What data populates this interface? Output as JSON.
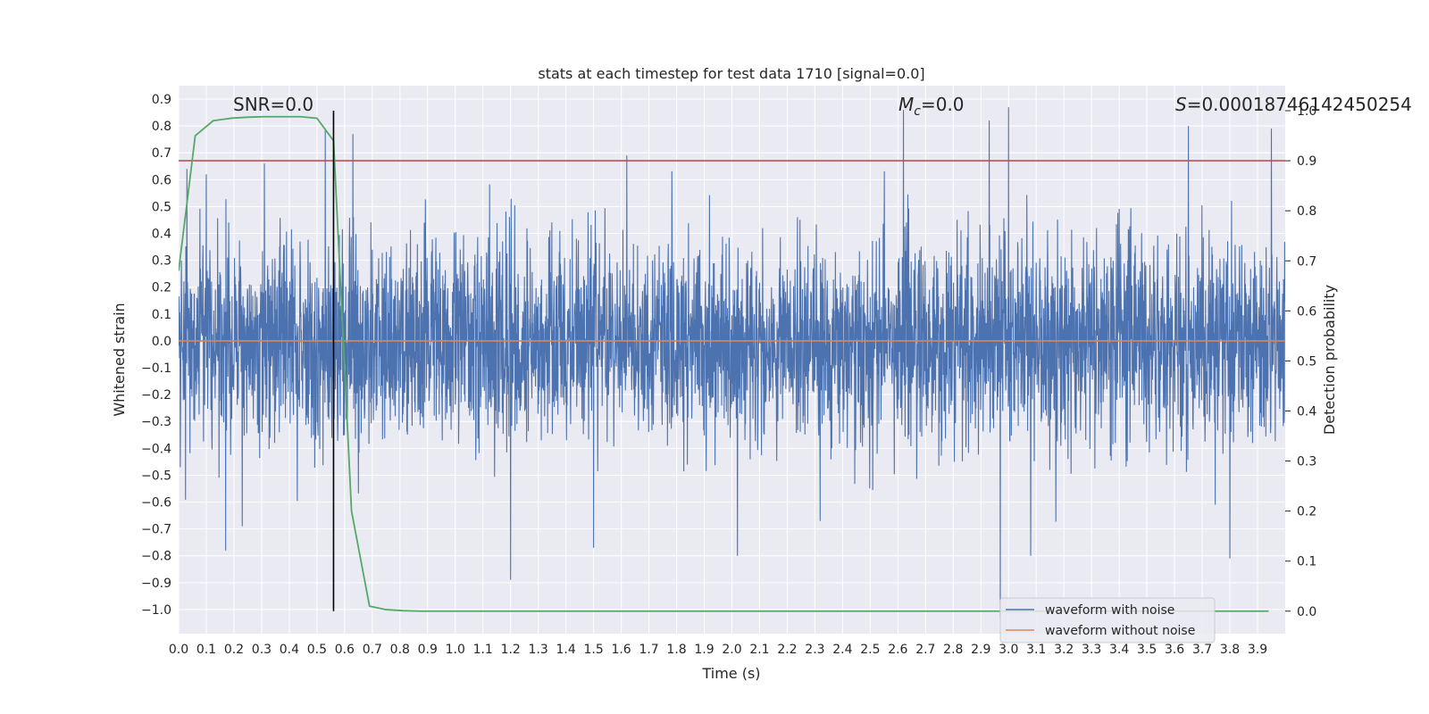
{
  "chart_data": {
    "type": "line",
    "title": "stats at each timestep for test data 1710 [signal=0.0]",
    "xlabel": "Time (s)",
    "ylabel": "Whitened strain",
    "ylabel_right": "Detection probability",
    "xlim": [
      0.0,
      4.0
    ],
    "ylim": [
      -1.09,
      0.95
    ],
    "ylim_right": [
      -0.045,
      1.05
    ],
    "x_ticks": [
      "0.0",
      "0.1",
      "0.2",
      "0.3",
      "0.4",
      "0.5",
      "0.6",
      "0.7",
      "0.8",
      "0.9",
      "1.0",
      "1.1",
      "1.2",
      "1.3",
      "1.4",
      "1.5",
      "1.6",
      "1.7",
      "1.8",
      "1.9",
      "2.0",
      "2.1",
      "2.2",
      "2.3",
      "2.4",
      "2.5",
      "2.6",
      "2.7",
      "2.8",
      "2.9",
      "3.0",
      "3.1",
      "3.2",
      "3.3",
      "3.4",
      "3.5",
      "3.6",
      "3.7",
      "3.8",
      "3.9"
    ],
    "y_ticks": [
      "0.9",
      "0.8",
      "0.7",
      "0.6",
      "0.5",
      "0.4",
      "0.3",
      "0.2",
      "0.1",
      "0.0",
      "-0.1",
      "-0.2",
      "-0.3",
      "-0.4",
      "-0.5",
      "-0.6",
      "-0.7",
      "-0.8",
      "-0.9",
      "-1.0"
    ],
    "y_ticks_right": [
      "1.0",
      "0.9",
      "0.8",
      "0.7",
      "0.6",
      "0.5",
      "0.4",
      "0.3",
      "0.2",
      "0.1",
      "0.0"
    ],
    "annotations": {
      "snr": "SNR=0.0",
      "mc_symbol": "M",
      "mc_sub": "c",
      "mc_value": "=0.0",
      "s_symbol": "S",
      "s_value": "=0.00018746142450254"
    },
    "threshold_probability": 0.9,
    "marker_time": 0.56,
    "noise_envelope": {
      "peak_positive": [
        [
          0.03,
          0.64
        ],
        [
          0.1,
          0.62
        ],
        [
          0.31,
          0.66
        ],
        [
          0.53,
          0.79
        ],
        [
          0.63,
          0.77
        ],
        [
          1.2,
          0.6
        ],
        [
          1.62,
          0.69
        ],
        [
          2.62,
          0.86
        ],
        [
          2.93,
          0.82
        ],
        [
          3.0,
          0.87
        ],
        [
          3.65,
          0.8
        ],
        [
          3.95,
          0.79
        ]
      ],
      "peak_negative": [
        [
          0.17,
          -0.78
        ],
        [
          0.23,
          -0.69
        ],
        [
          1.2,
          -0.89
        ],
        [
          1.5,
          -0.77
        ],
        [
          2.02,
          -0.8
        ],
        [
          2.97,
          -1.03
        ],
        [
          3.08,
          -0.8
        ],
        [
          3.8,
          -0.81
        ]
      ]
    },
    "series": [
      {
        "name": "waveform with noise",
        "color": "#4c72b0",
        "axis": "left"
      },
      {
        "name": "waveform without noise",
        "color": "#dd8452",
        "axis": "left",
        "constant_value": 0.0
      },
      {
        "color": "#55a868",
        "axis": "right",
        "x": [
          0.0,
          0.06,
          0.125,
          0.19,
          0.25,
          0.31,
          0.375,
          0.44,
          0.5,
          0.56,
          0.625,
          0.69,
          0.75,
          0.81,
          0.875,
          0.94,
          1.0,
          1.5,
          2.0,
          2.5,
          3.0,
          3.5,
          3.94
        ],
        "y": [
          0.68,
          0.95,
          0.98,
          0.985,
          0.987,
          0.988,
          0.988,
          0.988,
          0.985,
          0.94,
          0.2,
          0.01,
          0.003,
          0.001,
          0.0,
          0.0,
          0.0,
          0.0,
          0.0,
          0.0,
          0.0,
          0.0,
          0.0
        ]
      },
      {
        "color": "#c44e52",
        "axis": "right",
        "constant_value": 0.9
      }
    ],
    "legend": {
      "position": "lower right",
      "entries": [
        "waveform with noise",
        "waveform without noise"
      ]
    },
    "grid": true,
    "background": "#eaeaf2",
    "grid_color": "#ffffff",
    "marker_color": "#000000"
  }
}
